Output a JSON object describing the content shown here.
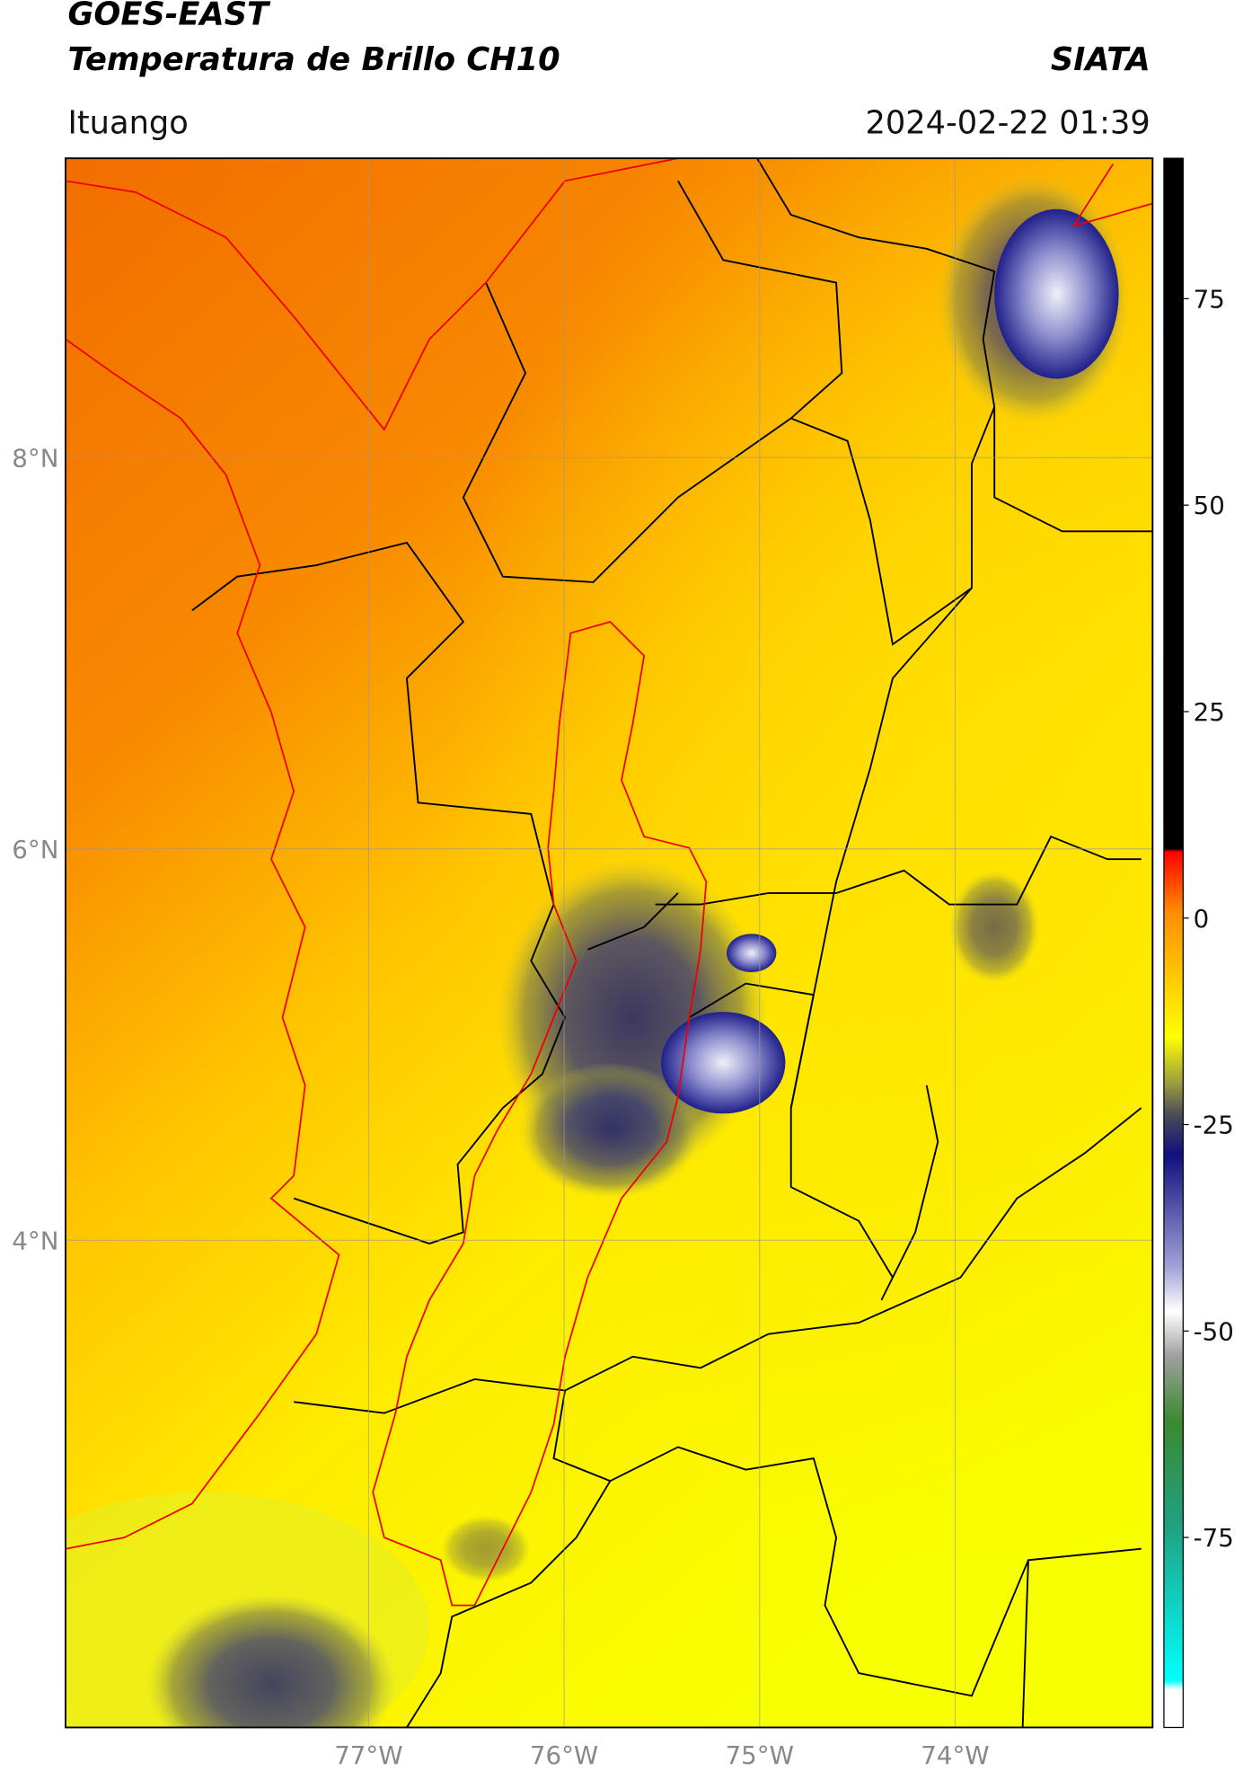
{
  "header": {
    "title": "GOES-EAST",
    "subtitle": "Temperatura de Brillo CH10",
    "source": "SIATA",
    "location": "Ituango",
    "datetime": "2024-02-22 01:39"
  },
  "map": {
    "xlim": [
      -78.55,
      -72.99
    ],
    "ylim": [
      1.51,
      9.53
    ],
    "grid": true,
    "xticks": [
      {
        "value": -77,
        "label": "77°W"
      },
      {
        "value": -76,
        "label": "76°W"
      },
      {
        "value": -75,
        "label": "75°W"
      },
      {
        "value": -74,
        "label": "74°W"
      }
    ],
    "yticks": [
      {
        "value": 8,
        "label": "8°N"
      },
      {
        "value": 6,
        "label": "6°N"
      },
      {
        "value": 4,
        "label": "4°N"
      }
    ]
  },
  "colorbar": {
    "lim": [
      -98,
      92
    ],
    "ticks": [
      -75,
      -50,
      -25,
      0,
      25,
      50,
      75
    ]
  }
}
